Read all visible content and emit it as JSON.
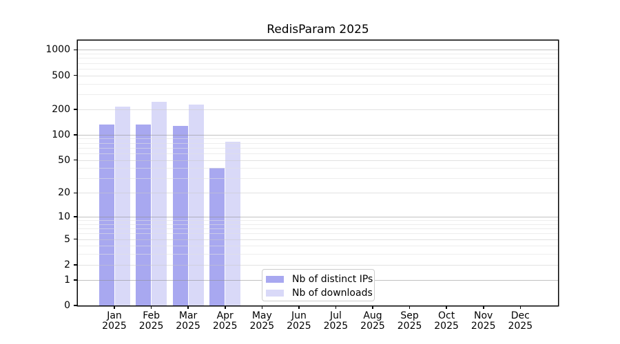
{
  "chart_data": {
    "type": "bar",
    "title": "RedisParam 2025",
    "year_label": "2025",
    "categories": [
      "Jan",
      "Feb",
      "Mar",
      "Apr",
      "May",
      "Jun",
      "Jul",
      "Aug",
      "Sep",
      "Oct",
      "Nov",
      "Dec"
    ],
    "series": [
      {
        "name": "Nb of distinct IPs",
        "color": "#a8a8f0",
        "values": [
          133,
          133,
          128,
          40,
          0,
          0,
          0,
          0,
          0,
          0,
          0,
          0
        ]
      },
      {
        "name": "Nb of downloads",
        "color": "#d9d9f8",
        "values": [
          215,
          245,
          228,
          83,
          0,
          0,
          0,
          0,
          0,
          0,
          0,
          0
        ]
      }
    ],
    "xlabel": "",
    "ylabel": "",
    "yscale": "log10(1+value)",
    "ylim": [
      0,
      1283
    ],
    "yticks": [
      0,
      1,
      2,
      5,
      10,
      20,
      50,
      100,
      200,
      500,
      1000
    ],
    "ytick_emphasis": [
      1,
      10,
      100,
      1000
    ],
    "minor_gridlines": [
      3,
      4,
      6,
      7,
      8,
      9,
      30,
      40,
      60,
      70,
      80,
      90,
      300,
      400,
      600,
      700,
      800,
      900
    ],
    "grid": "horizontal",
    "legend_position": "bottom-center"
  },
  "colors": {
    "bar_distinct_ips": "#a8a8f0",
    "bar_downloads": "#d9d9f8",
    "axis_spine": "#000000",
    "grid_emphasis": "rgba(140,140,140,0.55)",
    "grid_major": "rgba(200,200,200,0.55)",
    "grid_minor": "rgba(225,225,225,0.60)",
    "legend_border": "#cccccc",
    "background": "#ffffff"
  }
}
